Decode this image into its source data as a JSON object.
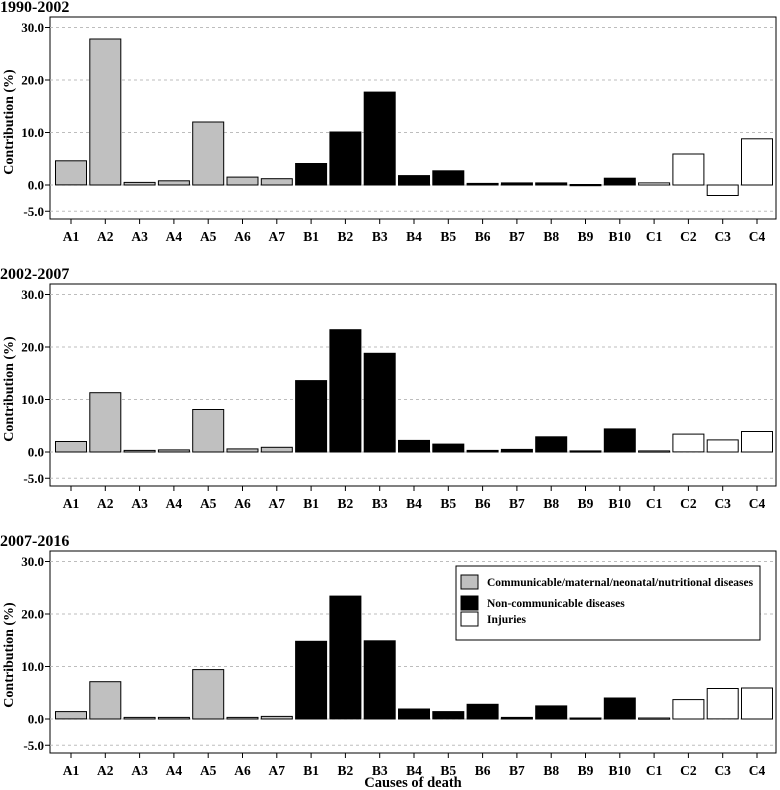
{
  "chart_data": [
    {
      "type": "bar",
      "title": "1990-2002",
      "xlabel": "",
      "ylabel": "Contribution (%)",
      "ylim": [
        -7,
        31
      ],
      "yticks": [
        "30.0",
        "20.0",
        "10.0",
        "0.0",
        "-5.0"
      ],
      "ytick_values": [
        30,
        20,
        10,
        0,
        -5
      ],
      "grid": "horizontal dashed",
      "categories": [
        "A1",
        "A2",
        "A3",
        "A4",
        "A5",
        "A6",
        "A7",
        "B1",
        "B2",
        "B3",
        "B4",
        "B5",
        "B6",
        "B7",
        "B8",
        "B9",
        "B10",
        "C1",
        "C2",
        "C3",
        "C4"
      ],
      "groups": [
        "A",
        "A",
        "A",
        "A",
        "A",
        "A",
        "A",
        "B",
        "B",
        "B",
        "B",
        "B",
        "B",
        "B",
        "B",
        "B",
        "B",
        "C",
        "C",
        "C",
        "C"
      ],
      "values": [
        4.6,
        27.8,
        0.5,
        0.8,
        12.0,
        1.5,
        1.2,
        4.1,
        10.1,
        17.7,
        1.8,
        2.7,
        0.3,
        0.4,
        0.4,
        0.1,
        1.3,
        0.4,
        5.9,
        -2.0,
        8.8
      ]
    },
    {
      "type": "bar",
      "title": "2002-2007",
      "xlabel": "",
      "ylabel": "Contribution (%)",
      "ylim": [
        -7,
        31
      ],
      "yticks": [
        "30.0",
        "20.0",
        "10.0",
        "0.0",
        "-5.0"
      ],
      "ytick_values": [
        30,
        20,
        10,
        0,
        -5
      ],
      "grid": "horizontal dashed",
      "categories": [
        "A1",
        "A2",
        "A3",
        "A4",
        "A5",
        "A6",
        "A7",
        "B1",
        "B2",
        "B3",
        "B4",
        "B5",
        "B6",
        "B7",
        "B8",
        "B9",
        "B10",
        "C1",
        "C2",
        "C3",
        "C4"
      ],
      "groups": [
        "A",
        "A",
        "A",
        "A",
        "A",
        "A",
        "A",
        "B",
        "B",
        "B",
        "B",
        "B",
        "B",
        "B",
        "B",
        "B",
        "B",
        "C",
        "C",
        "C",
        "C"
      ],
      "values": [
        2.0,
        11.3,
        0.3,
        0.4,
        8.1,
        0.6,
        0.9,
        13.6,
        23.3,
        18.8,
        2.2,
        1.5,
        0.3,
        0.5,
        2.9,
        0.2,
        4.4,
        0.2,
        3.4,
        2.3,
        3.9
      ]
    },
    {
      "type": "bar",
      "title": "2007-2016",
      "xlabel": "Causes of death",
      "ylabel": "Contribution (%)",
      "ylim": [
        -7,
        31
      ],
      "yticks": [
        "30.0",
        "20.0",
        "10.0",
        "0.0",
        "-5.0"
      ],
      "ytick_values": [
        30,
        20,
        10,
        0,
        -5
      ],
      "grid": "horizontal dashed",
      "legend_position": "top-right",
      "categories": [
        "A1",
        "A2",
        "A3",
        "A4",
        "A5",
        "A6",
        "A7",
        "B1",
        "B2",
        "B3",
        "B4",
        "B5",
        "B6",
        "B7",
        "B8",
        "B9",
        "B10",
        "C1",
        "C2",
        "C3",
        "C4"
      ],
      "groups": [
        "A",
        "A",
        "A",
        "A",
        "A",
        "A",
        "A",
        "B",
        "B",
        "B",
        "B",
        "B",
        "B",
        "B",
        "B",
        "B",
        "B",
        "C",
        "C",
        "C",
        "C"
      ],
      "values": [
        1.4,
        7.1,
        0.3,
        0.3,
        9.4,
        0.3,
        0.5,
        14.8,
        23.4,
        14.9,
        1.9,
        1.4,
        2.8,
        0.3,
        2.5,
        0.2,
        4.0,
        0.2,
        3.7,
        5.8,
        5.9
      ]
    }
  ],
  "legend": [
    {
      "group": "A",
      "label": "Communicable/maternal/neonatal/nutritional diseases",
      "color": "#c0c0c0"
    },
    {
      "group": "B",
      "label": "Non-communicable diseases",
      "color": "#000000"
    },
    {
      "group": "C",
      "label": "Injuries",
      "color": "#ffffff"
    }
  ],
  "colors": {
    "A": "#c0c0c0",
    "B": "#000000",
    "C": "#ffffff",
    "stroke": "#000000",
    "grid": "#bdbdbd"
  }
}
